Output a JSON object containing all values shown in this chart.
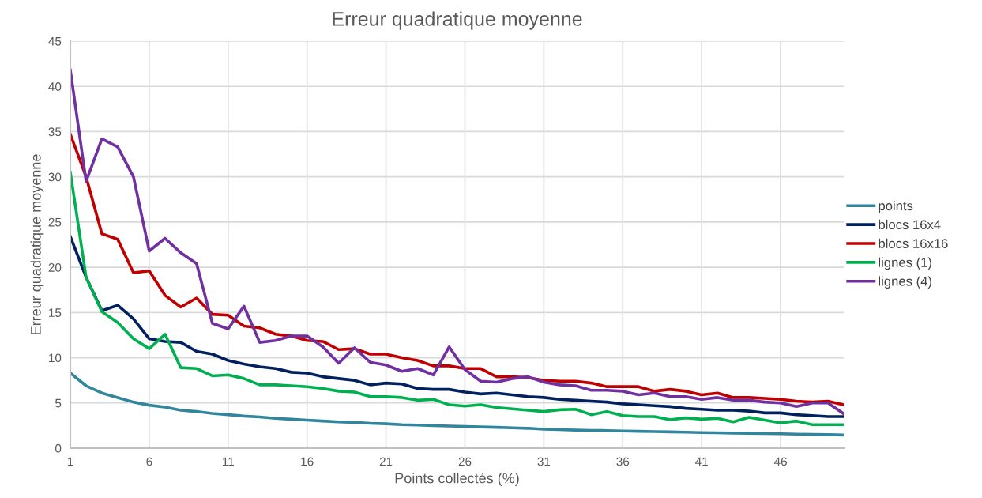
{
  "chart_data": {
    "type": "line",
    "title": "Erreur quadratique moyenne",
    "xlabel": "Points collectés (%)",
    "ylabel": "Erreur quadratique moyenne",
    "x": [
      1,
      2,
      3,
      4,
      5,
      6,
      7,
      8,
      9,
      10,
      11,
      12,
      13,
      14,
      15,
      16,
      17,
      18,
      19,
      20,
      21,
      22,
      23,
      24,
      25,
      26,
      27,
      28,
      29,
      30,
      31,
      32,
      33,
      34,
      35,
      36,
      37,
      38,
      39,
      40,
      41,
      42,
      43,
      44,
      45,
      46,
      47,
      48,
      49,
      50
    ],
    "xlim": [
      1,
      50
    ],
    "xticks": [
      1,
      6,
      11,
      16,
      21,
      26,
      31,
      36,
      41,
      46
    ],
    "ylim": [
      0,
      45
    ],
    "yticks": [
      0,
      5,
      10,
      15,
      20,
      25,
      30,
      35,
      40,
      45
    ],
    "grid": true,
    "legend": "right",
    "marker": "none",
    "line_style": "solid",
    "series": [
      {
        "name": "points",
        "color": "#31859c",
        "values": [
          8.3,
          6.9,
          6.1,
          5.6,
          5.1,
          4.75,
          4.55,
          4.2,
          4.05,
          3.85,
          3.7,
          3.55,
          3.45,
          3.3,
          3.2,
          3.1,
          3.0,
          2.9,
          2.85,
          2.75,
          2.7,
          2.6,
          2.55,
          2.5,
          2.45,
          2.4,
          2.35,
          2.3,
          2.25,
          2.2,
          2.1,
          2.05,
          2.0,
          1.97,
          1.95,
          1.9,
          1.87,
          1.83,
          1.8,
          1.77,
          1.73,
          1.7,
          1.67,
          1.65,
          1.62,
          1.6,
          1.55,
          1.52,
          1.5,
          1.45
        ]
      },
      {
        "name": "blocs 16x4",
        "color": "#002060",
        "values": [
          23.4,
          18.9,
          15.2,
          15.8,
          14.3,
          12.1,
          11.8,
          11.7,
          10.7,
          10.4,
          9.7,
          9.3,
          9.0,
          8.8,
          8.4,
          8.3,
          7.9,
          7.7,
          7.5,
          7.0,
          7.2,
          7.1,
          6.6,
          6.5,
          6.5,
          6.2,
          6.0,
          6.1,
          5.9,
          5.7,
          5.6,
          5.4,
          5.3,
          5.2,
          5.1,
          4.9,
          4.8,
          4.7,
          4.6,
          4.4,
          4.3,
          4.2,
          4.2,
          4.1,
          3.9,
          3.9,
          3.7,
          3.6,
          3.5,
          3.5
        ]
      },
      {
        "name": "blocs 16x16",
        "color": "#c00000",
        "values": [
          34.7,
          30.0,
          23.7,
          23.1,
          19.4,
          19.6,
          16.9,
          15.6,
          16.6,
          14.8,
          14.7,
          13.5,
          13.3,
          12.6,
          12.4,
          11.9,
          11.8,
          10.9,
          11.0,
          10.4,
          10.4,
          10.0,
          9.7,
          9.1,
          9.1,
          8.8,
          8.8,
          7.9,
          7.9,
          7.8,
          7.5,
          7.4,
          7.4,
          7.2,
          6.8,
          6.8,
          6.8,
          6.3,
          6.5,
          6.3,
          5.9,
          6.1,
          5.6,
          5.6,
          5.5,
          5.4,
          5.2,
          5.1,
          5.2,
          4.8
        ]
      },
      {
        "name": "lignes (1)",
        "color": "#00b050",
        "values": [
          30.5,
          18.9,
          15.1,
          13.9,
          12.1,
          11.0,
          12.6,
          8.9,
          8.8,
          8.0,
          8.1,
          7.7,
          7.0,
          7.0,
          6.9,
          6.8,
          6.6,
          6.3,
          6.2,
          5.7,
          5.7,
          5.6,
          5.3,
          5.4,
          4.8,
          4.65,
          4.8,
          4.5,
          4.35,
          4.2,
          4.05,
          4.25,
          4.3,
          3.7,
          4.05,
          3.6,
          3.5,
          3.5,
          3.15,
          3.35,
          3.2,
          3.3,
          2.9,
          3.4,
          3.1,
          2.8,
          3.0,
          2.6,
          2.6,
          2.6
        ]
      },
      {
        "name": "lignes (4)",
        "color": "#7030a0",
        "values": [
          41.8,
          29.5,
          34.2,
          33.3,
          30.0,
          21.8,
          23.2,
          21.6,
          20.4,
          13.8,
          13.2,
          15.7,
          11.7,
          11.9,
          12.4,
          12.4,
          11.2,
          9.4,
          11.1,
          9.5,
          9.2,
          8.5,
          8.8,
          8.1,
          11.2,
          8.7,
          7.4,
          7.3,
          7.7,
          7.9,
          7.3,
          7.0,
          6.9,
          6.4,
          6.4,
          6.3,
          5.9,
          6.1,
          5.7,
          5.7,
          5.4,
          5.6,
          5.3,
          5.3,
          5.1,
          5.0,
          4.6,
          5.0,
          5.0,
          3.8
        ]
      }
    ]
  }
}
